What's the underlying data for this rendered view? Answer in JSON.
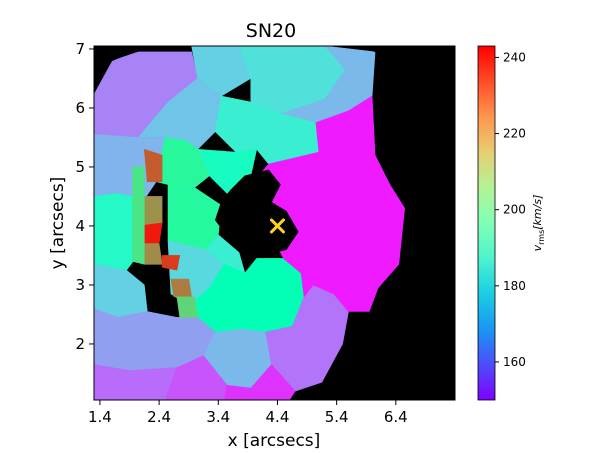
{
  "chart_data": {
    "type": "heatmap",
    "title": "SN20",
    "xlabel": "x [arcsecs]",
    "ylabel": "y [arcsecs]",
    "xlim": [
      1.3,
      7.4
    ],
    "ylim": [
      1.05,
      7.05
    ],
    "xticks": [
      "1.4",
      "2.4",
      "3.4",
      "4.4",
      "5.4",
      "6.4"
    ],
    "xtick_values": [
      1.4,
      2.4,
      3.4,
      4.4,
      5.4,
      6.4
    ],
    "yticks": [
      "2",
      "3",
      "4",
      "5",
      "6",
      "7"
    ],
    "ytick_values": [
      2,
      3,
      4,
      5,
      6,
      7
    ],
    "colorbar": {
      "label": "v_rms [km/s]",
      "vmin": 150,
      "vmax": 243,
      "ticks": [
        160,
        180,
        200,
        220,
        240
      ],
      "colormap": "rainbow"
    },
    "background_color": "#000000",
    "marker": {
      "symbol": "x",
      "x": 4.4,
      "y": 4.0,
      "color": "#ffd21a"
    },
    "regions": [
      {
        "v": 166,
        "poly": [
          [
            2.05,
            6.95
          ],
          [
            2.95,
            6.95
          ],
          [
            3.05,
            6.5
          ],
          [
            2.55,
            6.1
          ],
          [
            2.05,
            5.5
          ],
          [
            1.3,
            5.55
          ],
          [
            1.3,
            6.25
          ],
          [
            1.6,
            6.8
          ]
        ]
      },
      {
        "v": 178,
        "poly": [
          [
            2.95,
            7.05
          ],
          [
            3.75,
            7.05
          ],
          [
            3.95,
            6.5
          ],
          [
            3.45,
            6.2
          ],
          [
            3.05,
            6.5
          ]
        ]
      },
      {
        "v": 182,
        "poly": [
          [
            3.75,
            7.05
          ],
          [
            5.2,
            7.05
          ],
          [
            5.55,
            6.65
          ],
          [
            5.2,
            6.15
          ],
          [
            4.5,
            5.85
          ],
          [
            3.95,
            6.1
          ],
          [
            3.95,
            6.5
          ]
        ]
      },
      {
        "v": 174,
        "poly": [
          [
            5.2,
            7.05
          ],
          [
            6.05,
            6.95
          ],
          [
            6.0,
            6.2
          ],
          [
            5.6,
            5.95
          ],
          [
            5.05,
            5.75
          ],
          [
            4.45,
            5.9
          ],
          [
            5.2,
            6.15
          ],
          [
            5.55,
            6.65
          ]
        ]
      },
      {
        "v": 176,
        "poly": [
          [
            2.55,
            6.1
          ],
          [
            3.05,
            6.5
          ],
          [
            3.45,
            6.2
          ],
          [
            3.35,
            5.6
          ],
          [
            3.05,
            5.3
          ],
          [
            2.85,
            5.45
          ],
          [
            2.5,
            5.5
          ],
          [
            2.05,
            5.5
          ]
        ]
      },
      {
        "v": 186,
        "poly": [
          [
            3.45,
            6.2
          ],
          [
            3.95,
            6.1
          ],
          [
            4.45,
            5.9
          ],
          [
            5.05,
            5.75
          ],
          [
            5.1,
            5.25
          ],
          [
            4.25,
            5.05
          ],
          [
            4.05,
            5.3
          ],
          [
            3.7,
            5.25
          ],
          [
            3.35,
            5.6
          ]
        ]
      },
      {
        "v": 173,
        "poly": [
          [
            1.3,
            5.55
          ],
          [
            2.05,
            5.5
          ],
          [
            2.5,
            5.5
          ],
          [
            2.35,
            4.75
          ],
          [
            2.15,
            4.45
          ],
          [
            1.7,
            4.55
          ],
          [
            1.3,
            4.5
          ]
        ]
      },
      {
        "v": 192,
        "poly": [
          [
            3.05,
            5.3
          ],
          [
            3.7,
            5.25
          ],
          [
            4.05,
            5.3
          ],
          [
            3.95,
            4.85
          ],
          [
            3.55,
            4.55
          ],
          [
            3.25,
            4.85
          ]
        ]
      },
      {
        "v": 204,
        "poly": [
          [
            2.5,
            5.5
          ],
          [
            2.85,
            5.45
          ],
          [
            3.05,
            5.3
          ],
          [
            3.25,
            4.85
          ],
          [
            3.0,
            4.65
          ],
          [
            2.55,
            4.7
          ],
          [
            2.35,
            4.75
          ]
        ]
      },
      {
        "v": 190,
        "poly": [
          [
            1.3,
            4.5
          ],
          [
            1.7,
            4.55
          ],
          [
            2.15,
            4.45
          ],
          [
            2.15,
            3.65
          ],
          [
            1.85,
            3.25
          ],
          [
            1.3,
            3.35
          ]
        ]
      },
      {
        "v": 203,
        "poly": [
          [
            2.55,
            4.7
          ],
          [
            3.0,
            4.65
          ],
          [
            3.45,
            4.35
          ],
          [
            3.4,
            3.85
          ],
          [
            3.2,
            3.6
          ],
          [
            2.55,
            3.75
          ]
        ]
      },
      {
        "v": 180,
        "poly": [
          [
            2.55,
            3.75
          ],
          [
            3.2,
            3.6
          ],
          [
            3.5,
            3.35
          ],
          [
            3.25,
            2.95
          ],
          [
            2.9,
            2.65
          ],
          [
            2.6,
            2.85
          ]
        ]
      },
      {
        "v": 186,
        "poly": [
          [
            3.4,
            3.85
          ],
          [
            3.75,
            3.55
          ],
          [
            3.85,
            3.2
          ],
          [
            3.5,
            3.35
          ],
          [
            3.2,
            3.6
          ]
        ]
      },
      {
        "v": 196,
        "poly": [
          [
            2.9,
            2.65
          ],
          [
            3.25,
            2.95
          ],
          [
            3.5,
            3.35
          ],
          [
            3.85,
            3.2
          ],
          [
            4.05,
            3.45
          ],
          [
            4.5,
            3.45
          ],
          [
            4.8,
            3.2
          ],
          [
            4.85,
            2.8
          ],
          [
            4.65,
            2.3
          ],
          [
            4.2,
            2.2
          ],
          [
            3.8,
            2.25
          ],
          [
            3.35,
            2.2
          ],
          [
            3.05,
            2.45
          ]
        ]
      },
      {
        "v": 178,
        "poly": [
          [
            1.3,
            3.35
          ],
          [
            1.85,
            3.25
          ],
          [
            2.15,
            3.0
          ],
          [
            2.2,
            2.55
          ],
          [
            1.7,
            2.45
          ],
          [
            1.3,
            2.6
          ]
        ]
      },
      {
        "v": 170,
        "poly": [
          [
            1.3,
            2.6
          ],
          [
            1.7,
            2.45
          ],
          [
            2.2,
            2.55
          ],
          [
            2.7,
            2.45
          ],
          [
            3.05,
            2.45
          ],
          [
            3.35,
            2.2
          ],
          [
            3.15,
            1.8
          ],
          [
            2.7,
            1.6
          ],
          [
            1.9,
            1.55
          ],
          [
            1.3,
            1.65
          ]
        ]
      },
      {
        "v": 174,
        "poly": [
          [
            3.35,
            2.2
          ],
          [
            3.8,
            2.25
          ],
          [
            4.2,
            2.2
          ],
          [
            4.3,
            1.65
          ],
          [
            3.95,
            1.25
          ],
          [
            3.55,
            1.3
          ],
          [
            3.15,
            1.8
          ]
        ]
      },
      {
        "v": 164,
        "poly": [
          [
            4.2,
            2.2
          ],
          [
            4.65,
            2.3
          ],
          [
            4.85,
            2.8
          ],
          [
            5.0,
            3.0
          ],
          [
            5.35,
            2.85
          ],
          [
            5.6,
            2.55
          ],
          [
            5.5,
            2.0
          ],
          [
            5.15,
            1.35
          ],
          [
            4.7,
            1.2
          ],
          [
            4.3,
            1.65
          ]
        ]
      },
      {
        "v": 163,
        "poly": [
          [
            1.3,
            1.65
          ],
          [
            1.9,
            1.55
          ],
          [
            2.7,
            1.6
          ],
          [
            2.5,
            1.05
          ],
          [
            1.3,
            1.05
          ]
        ]
      },
      {
        "v": 160,
        "poly": [
          [
            2.7,
            1.6
          ],
          [
            3.15,
            1.8
          ],
          [
            3.55,
            1.3
          ],
          [
            3.5,
            1.05
          ],
          [
            2.5,
            1.05
          ]
        ]
      },
      {
        "v": 156,
        "poly": [
          [
            3.5,
            1.05
          ],
          [
            3.55,
            1.3
          ],
          [
            3.95,
            1.25
          ],
          [
            4.3,
            1.65
          ],
          [
            4.7,
            1.2
          ],
          [
            4.6,
            1.05
          ]
        ]
      },
      {
        "v": 153,
        "poly": [
          [
            5.05,
            5.75
          ],
          [
            5.6,
            5.95
          ],
          [
            6.0,
            6.2
          ],
          [
            6.05,
            5.2
          ],
          [
            6.3,
            4.7
          ],
          [
            6.55,
            4.3
          ],
          [
            6.45,
            3.35
          ],
          [
            6.1,
            2.95
          ],
          [
            5.95,
            2.55
          ],
          [
            5.6,
            2.55
          ],
          [
            5.35,
            2.85
          ],
          [
            5.0,
            3.0
          ],
          [
            4.85,
            2.8
          ],
          [
            4.8,
            3.2
          ],
          [
            4.5,
            3.45
          ],
          [
            4.4,
            3.65
          ],
          [
            4.55,
            3.75
          ],
          [
            4.4,
            4.05
          ],
          [
            3.85,
            3.85
          ],
          [
            3.85,
            4.2
          ],
          [
            4.05,
            4.55
          ],
          [
            4.0,
            4.75
          ],
          [
            4.25,
            5.05
          ],
          [
            5.1,
            5.25
          ]
        ]
      },
      {
        "v": 232,
        "poly": [
          [
            2.15,
            5.3
          ],
          [
            2.2,
            4.75
          ],
          [
            2.45,
            4.75
          ],
          [
            2.45,
            5.2
          ]
        ]
      },
      {
        "v": 225,
        "poly": [
          [
            2.05,
            4.5
          ],
          [
            2.45,
            4.5
          ],
          [
            2.45,
            4.05
          ],
          [
            2.1,
            4.0
          ]
        ]
      },
      {
        "v": 240,
        "poly": [
          [
            2.05,
            4.0
          ],
          [
            2.45,
            4.05
          ],
          [
            2.4,
            3.7
          ],
          [
            2.05,
            3.7
          ]
        ]
      },
      {
        "v": 226,
        "poly": [
          [
            2.05,
            3.7
          ],
          [
            2.4,
            3.7
          ],
          [
            2.45,
            3.35
          ],
          [
            2.15,
            3.35
          ]
        ]
      },
      {
        "v": 236,
        "poly": [
          [
            2.45,
            3.5
          ],
          [
            2.75,
            3.5
          ],
          [
            2.7,
            3.25
          ],
          [
            2.45,
            3.3
          ]
        ]
      },
      {
        "v": 228,
        "poly": [
          [
            2.6,
            3.1
          ],
          [
            2.9,
            3.1
          ],
          [
            2.95,
            2.8
          ],
          [
            2.65,
            2.8
          ]
        ]
      },
      {
        "v": 214,
        "poly": [
          [
            2.7,
            2.8
          ],
          [
            3.0,
            2.8
          ],
          [
            3.05,
            2.45
          ],
          [
            2.75,
            2.45
          ]
        ]
      },
      {
        "v": 210,
        "poly": [
          [
            1.95,
            5.0
          ],
          [
            2.15,
            5.0
          ],
          [
            2.15,
            3.35
          ],
          [
            1.95,
            3.4
          ]
        ]
      },
      {
        "v": 0,
        "poly": [
          [
            1.3,
            7.05
          ],
          [
            2.2,
            7.05
          ],
          [
            1.6,
            6.8
          ],
          [
            1.3,
            6.25
          ]
        ]
      },
      {
        "v": 0,
        "poly": [
          [
            6.05,
            6.95
          ],
          [
            6.4,
            6.6
          ],
          [
            6.85,
            5.65
          ],
          [
            6.95,
            4.3
          ],
          [
            6.75,
            3.2
          ],
          [
            6.35,
            2.35
          ],
          [
            5.85,
            1.65
          ],
          [
            5.5,
            1.3
          ],
          [
            5.3,
            1.05
          ],
          [
            7.4,
            1.05
          ],
          [
            7.4,
            7.05
          ],
          [
            5.85,
            7.05
          ]
        ]
      },
      {
        "v": 0,
        "poly": [
          [
            3.85,
            4.85
          ],
          [
            4.25,
            4.95
          ],
          [
            4.45,
            4.7
          ],
          [
            4.3,
            4.4
          ],
          [
            4.55,
            4.25
          ],
          [
            4.75,
            3.9
          ],
          [
            4.55,
            3.6
          ],
          [
            4.35,
            3.55
          ],
          [
            4.15,
            3.75
          ],
          [
            3.95,
            3.75
          ],
          [
            3.65,
            3.7
          ],
          [
            3.35,
            4.1
          ],
          [
            3.45,
            4.4
          ],
          [
            3.6,
            4.6
          ]
        ]
      }
    ]
  }
}
